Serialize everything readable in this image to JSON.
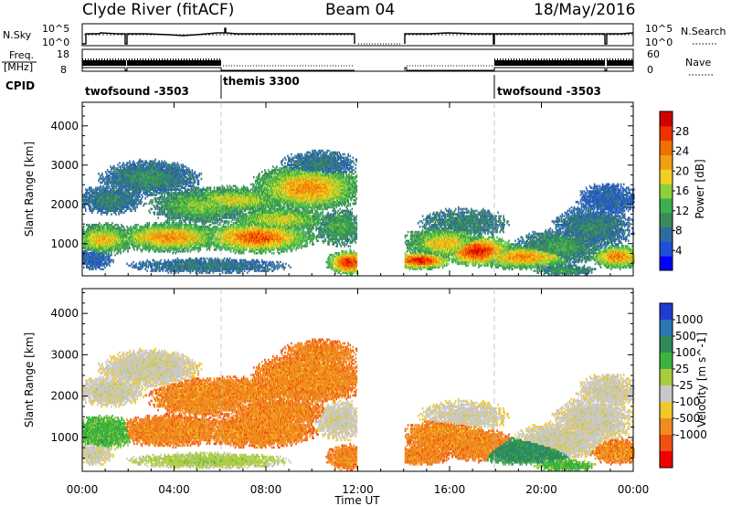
{
  "header": {
    "title": "Clyde River (fitACF)",
    "beam": "Beam 04",
    "date": "18/May/2016"
  },
  "nsky_panel": {
    "left_label": "N.Sky",
    "right_label": "N.Search",
    "left_ticks": [
      "10^5",
      "10^0"
    ],
    "right_ticks": [
      "10^5",
      "10^0"
    ]
  },
  "freq_panel": {
    "left_label_line1": "Freq.",
    "left_label_line2": "[MHz]",
    "right_label": "Nave",
    "left_ticks": [
      "18",
      "8"
    ],
    "right_ticks": [
      "60",
      "0"
    ]
  },
  "cpid_panel": {
    "label": "CPID",
    "segments": [
      {
        "start_h": 0,
        "end_h": 6,
        "name": "twofsound -3503"
      },
      {
        "start_h": 6,
        "end_h": 18,
        "name": "themis 3300"
      },
      {
        "start_h": 18,
        "end_h": 24,
        "name": "twofsound -3503"
      }
    ]
  },
  "colors": {
    "power": [
      "#0000ff",
      "#2050d8",
      "#2f6ba0",
      "#3a8a5a",
      "#3cb04a",
      "#8cd03a",
      "#f0d020",
      "#f0a010",
      "#f07000",
      "#f03000",
      "#d00000"
    ],
    "velocity": [
      "#1e3cd2",
      "#2878b4",
      "#2e8a5a",
      "#3cb43c",
      "#aacc3a",
      "#c8c8c8",
      "#f0c828",
      "#f08c1e",
      "#f05014",
      "#f00000"
    ]
  },
  "chart_data": [
    {
      "type": "heatmap",
      "name": "power",
      "xlabel": "",
      "ylabel": "Slant Range [km]",
      "xlim": [
        0,
        24
      ],
      "ylim": [
        180,
        4600
      ],
      "yticks": [
        1000,
        2000,
        3000,
        4000
      ],
      "colorbar": {
        "label": "Power [dB]",
        "range": [
          0,
          32
        ],
        "ticks": [
          "4",
          "8",
          "12",
          "16",
          "20",
          "24",
          "28"
        ]
      }
    },
    {
      "type": "heatmap",
      "name": "velocity",
      "xlabel": "Time UT",
      "ylabel": "Slant Range [km]",
      "xlim": [
        0,
        24
      ],
      "ylim": [
        180,
        4600
      ],
      "yticks": [
        1000,
        2000,
        3000,
        4000
      ],
      "xticks": [
        "00:00",
        "04:00",
        "08:00",
        "12:00",
        "16:00",
        "20:00",
        "00:00"
      ],
      "colorbar": {
        "label": "Velocity [m s^-1]",
        "ticks": [
          "1000",
          "500",
          "100",
          "25",
          "-25",
          "-100",
          "-500",
          "-1000"
        ]
      }
    }
  ]
}
